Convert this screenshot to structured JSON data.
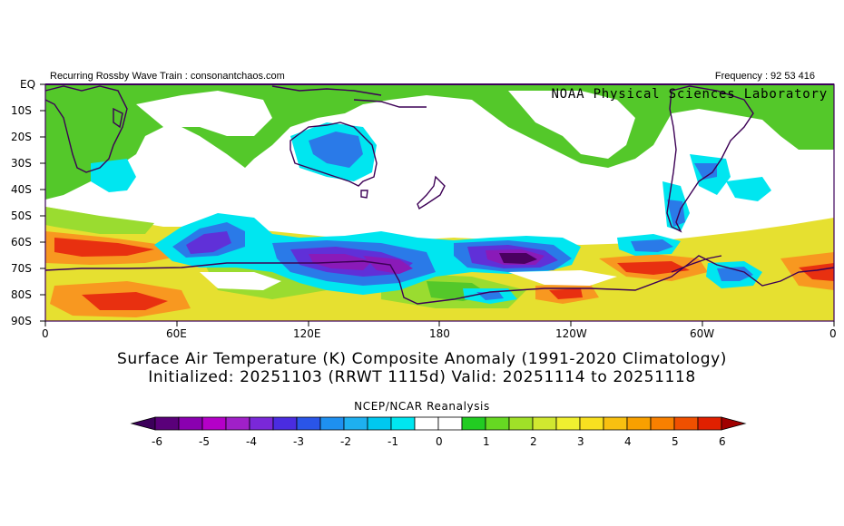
{
  "header": {
    "left_text": "Recurring Rossby Wave Train : consonantchaos.com",
    "right_text": "Frequency : 92 53 416",
    "lab": "NOAA Physical Sciences Laboratory"
  },
  "axes": {
    "lat_labels": [
      "EQ",
      "10S",
      "20S",
      "30S",
      "40S",
      "50S",
      "60S",
      "70S",
      "80S",
      "90S"
    ],
    "lon_labels": [
      "0",
      "60E",
      "120E",
      "180",
      "120W",
      "60W",
      "0"
    ]
  },
  "titles": {
    "line1": "Surface Air Temperature (K) Composite Anomaly (1991-2020 Climatology)",
    "line2": "Initialized: 20251103 (RRWT 1115d) Valid: 20251114 to 20251118"
  },
  "colorbar": {
    "label": "NCEP/NCAR Reanalysis",
    "ticks": [
      "-6",
      "-5",
      "-4",
      "-3",
      "-2",
      "-1",
      "0",
      "1",
      "2",
      "3",
      "4",
      "5",
      "6"
    ],
    "colors": [
      "#5a007a",
      "#8a00b0",
      "#b400c8",
      "#a020c8",
      "#7a28d8",
      "#4a2ce0",
      "#2a55e8",
      "#1e90f0",
      "#00c8f0",
      "#ffffff",
      "#ffffff",
      "#22cc22",
      "#66d822",
      "#a0e028",
      "#d0e830",
      "#f0f030",
      "#f8e020",
      "#f8c010",
      "#f8a000",
      "#f88000",
      "#f05000",
      "#e02000",
      "#c00000"
    ],
    "arrow_left": "#3c005a",
    "arrow_right": "#a00000"
  },
  "palette": {
    "frame": "#3c005a",
    "coast": "#3c0055",
    "green": "#54c82a",
    "cyan": "#00e6f0",
    "blue": "#2a7ae8",
    "violet": "#6030d8",
    "purple": "#8a1ab8",
    "deep": "#4a0060",
    "yellow": "#e6e030",
    "orange": "#f89820",
    "red": "#e83010",
    "lightgreen": "#9adc30"
  }
}
